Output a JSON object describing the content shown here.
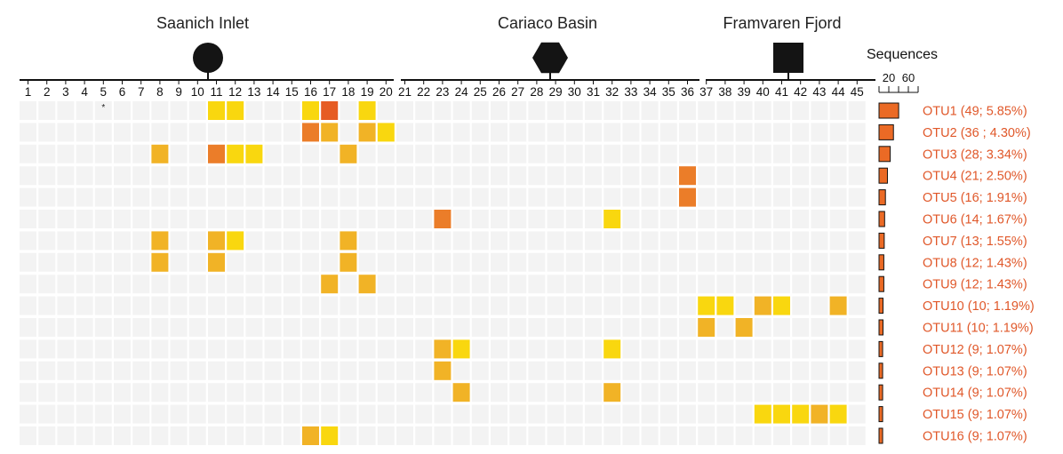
{
  "chart_data": {
    "type": "heatmap",
    "sites": [
      {
        "name": "Saanich Inlet",
        "columns": [
          1,
          20
        ],
        "symbol": "circle-icon"
      },
      {
        "name": "Cariaco Basin",
        "columns": [
          21,
          36
        ],
        "symbol": "hexagon-icon"
      },
      {
        "name": "Framvaren Fjord",
        "columns": [
          37,
          45
        ],
        "symbol": "square-icon"
      }
    ],
    "columns": [
      "1",
      "2",
      "3",
      "4",
      "5",
      "6",
      "7",
      "8",
      "9",
      "10",
      "11",
      "12",
      "13",
      "14",
      "15",
      "16",
      "17",
      "18",
      "19",
      "20",
      "21",
      "22",
      "23",
      "24",
      "25",
      "26",
      "27",
      "28",
      "29",
      "30",
      "31",
      "32",
      "33",
      "34",
      "35",
      "36",
      "37",
      "38",
      "39",
      "40",
      "41",
      "42",
      "43",
      "44",
      "45"
    ],
    "marked_column": {
      "column": 5,
      "mark": "*"
    },
    "level_colors": {
      "0": "#f3f3f3",
      "1": "#f9d70f",
      "2": "#f1b326",
      "3": "#eb7d29",
      "4": "#e65c24"
    },
    "rows": [
      {
        "label": "OTU1 (49; 5.85%)",
        "sequences": 49,
        "cells": {
          "11": 1,
          "12": 1,
          "16": 1,
          "17": 4,
          "19": 1
        }
      },
      {
        "label": "OTU2 (36 ; 4.30%)",
        "sequences": 36,
        "cells": {
          "16": 3,
          "17": 2,
          "19": 2,
          "20": 1
        }
      },
      {
        "label": "OTU3 (28; 3.34%)",
        "sequences": 28,
        "cells": {
          "8": 2,
          "11": 3,
          "12": 1,
          "13": 1,
          "18": 2
        }
      },
      {
        "label": "OTU4 (21; 2.50%)",
        "sequences": 21,
        "cells": {
          "36": 3
        }
      },
      {
        "label": "OTU5 (16; 1.91%)",
        "sequences": 16,
        "cells": {
          "36": 3
        }
      },
      {
        "label": "OTU6 (14; 1.67%)",
        "sequences": 14,
        "cells": {
          "23": 3,
          "32": 1
        }
      },
      {
        "label": "OTU7 (13; 1.55%)",
        "sequences": 13,
        "cells": {
          "8": 2,
          "11": 2,
          "12": 1,
          "18": 2
        }
      },
      {
        "label": "OTU8 (12; 1.43%)",
        "sequences": 12,
        "cells": {
          "8": 2,
          "11": 2,
          "18": 2
        }
      },
      {
        "label": "OTU9 (12; 1.43%)",
        "sequences": 12,
        "cells": {
          "17": 2,
          "19": 2
        }
      },
      {
        "label": "OTU10 (10; 1.19%)",
        "sequences": 10,
        "cells": {
          "37": 1,
          "38": 1,
          "40": 2,
          "41": 1,
          "44": 2
        }
      },
      {
        "label": "OTU11 (10; 1.19%)",
        "sequences": 10,
        "cells": {
          "37": 2,
          "39": 2
        }
      },
      {
        "label": "OTU12 (9; 1.07%)",
        "sequences": 9,
        "cells": {
          "23": 2,
          "24": 1,
          "32": 1
        }
      },
      {
        "label": "OTU13 (9; 1.07%)",
        "sequences": 9,
        "cells": {
          "23": 2
        }
      },
      {
        "label": "OTU14 (9; 1.07%)",
        "sequences": 9,
        "cells": {
          "24": 2,
          "32": 2
        }
      },
      {
        "label": "OTU15 (9; 1.07%)",
        "sequences": 9,
        "cells": {
          "40": 1,
          "41": 1,
          "42": 1,
          "43": 2,
          "44": 1
        }
      },
      {
        "label": "OTU16 (9; 1.07%)",
        "sequences": 9,
        "cells": {
          "16": 2,
          "17": 1
        }
      }
    ],
    "sequences_axis": {
      "title": "Sequences",
      "ticks": [
        "20",
        "60"
      ],
      "tick_values": [
        20,
        60
      ],
      "range": [
        0,
        80
      ]
    },
    "bar_color": "#eb6a25",
    "label_color": "#e0582a"
  }
}
